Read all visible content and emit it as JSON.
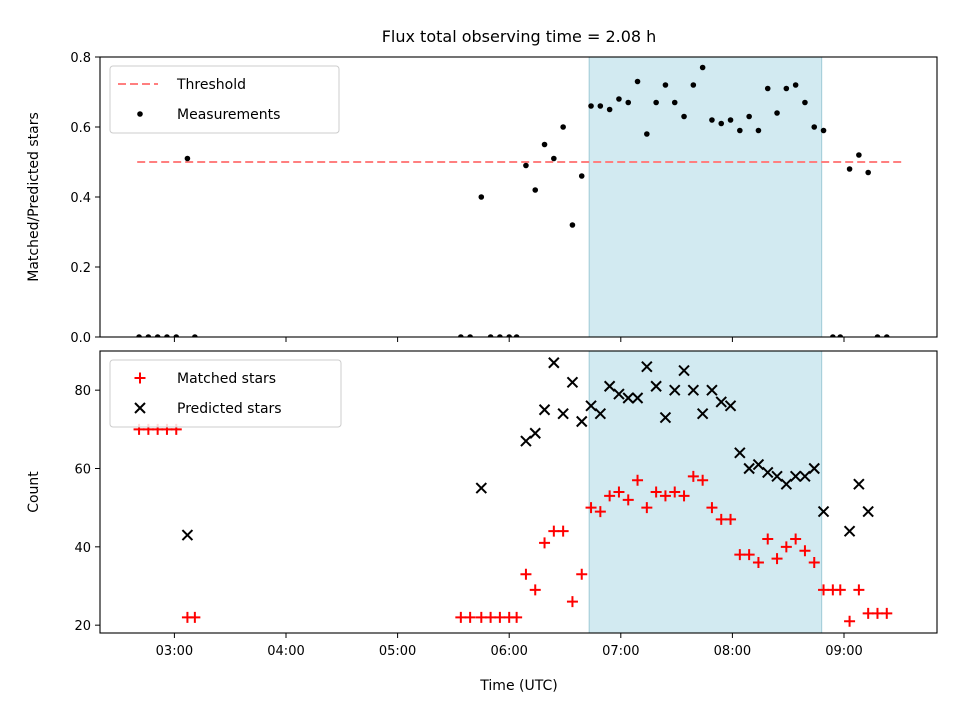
{
  "title": "Flux total observing time = 2.08 h",
  "xlabel": "Time (UTC)",
  "x_ticks": [
    "03:00",
    "04:00",
    "05:00",
    "06:00",
    "07:00",
    "08:00",
    "09:00"
  ],
  "shaded_interval": {
    "start": "06:43",
    "end": "08:48",
    "color": "#add8e6"
  },
  "chart_data": [
    {
      "type": "scatter",
      "panel": "top",
      "ylabel": "Matched/Predicted stars",
      "xlim": [
        "02:20",
        "09:50"
      ],
      "ylim": [
        0,
        0.8
      ],
      "y_ticks": [
        "0.0",
        "0.2",
        "0.4",
        "0.6",
        "0.8"
      ],
      "legend": [
        "Threshold",
        "Measurements"
      ],
      "legend_position": "upper-left",
      "threshold": {
        "name": "Threshold",
        "value": 0.5,
        "x_start": "02:40",
        "x_end": "09:32",
        "color": "#ff7f7f"
      },
      "series": [
        {
          "name": "Measurements",
          "marker": "dot",
          "color": "#000000",
          "points": [
            [
              "02:41",
              0
            ],
            [
              "02:46",
              0
            ],
            [
              "02:51",
              0
            ],
            [
              "02:56",
              0
            ],
            [
              "03:01",
              0
            ],
            [
              "03:07",
              0.51
            ],
            [
              "03:11",
              0
            ],
            [
              "05:34",
              0
            ],
            [
              "05:39",
              0
            ],
            [
              "05:45",
              0.4
            ],
            [
              "05:50",
              0
            ],
            [
              "05:55",
              0
            ],
            [
              "06:00",
              0
            ],
            [
              "06:04",
              0
            ],
            [
              "06:09",
              0.49
            ],
            [
              "06:14",
              0.42
            ],
            [
              "06:19",
              0.55
            ],
            [
              "06:24",
              0.51
            ],
            [
              "06:29",
              0.6
            ],
            [
              "06:34",
              0.32
            ],
            [
              "06:39",
              0.46
            ],
            [
              "06:44",
              0.66
            ],
            [
              "06:49",
              0.66
            ],
            [
              "06:54",
              0.65
            ],
            [
              "06:59",
              0.68
            ],
            [
              "07:04",
              0.67
            ],
            [
              "07:09",
              0.73
            ],
            [
              "07:14",
              0.58
            ],
            [
              "07:19",
              0.67
            ],
            [
              "07:24",
              0.72
            ],
            [
              "07:29",
              0.67
            ],
            [
              "07:34",
              0.63
            ],
            [
              "07:39",
              0.72
            ],
            [
              "07:44",
              0.77
            ],
            [
              "07:49",
              0.62
            ],
            [
              "07:54",
              0.61
            ],
            [
              "07:59",
              0.62
            ],
            [
              "08:04",
              0.59
            ],
            [
              "08:09",
              0.63
            ],
            [
              "08:14",
              0.59
            ],
            [
              "08:19",
              0.71
            ],
            [
              "08:24",
              0.64
            ],
            [
              "08:29",
              0.71
            ],
            [
              "08:34",
              0.72
            ],
            [
              "08:39",
              0.67
            ],
            [
              "08:44",
              0.6
            ],
            [
              "08:49",
              0.59
            ],
            [
              "08:54",
              0
            ],
            [
              "08:58",
              0
            ],
            [
              "09:03",
              0.48
            ],
            [
              "09:08",
              0.52
            ],
            [
              "09:13",
              0.47
            ],
            [
              "09:18",
              0
            ],
            [
              "09:23",
              0
            ]
          ]
        }
      ]
    },
    {
      "type": "scatter",
      "panel": "bottom",
      "ylabel": "Count",
      "xlim": [
        "02:20",
        "09:50"
      ],
      "ylim": [
        18,
        90
      ],
      "y_ticks": [
        "20",
        "40",
        "60",
        "80"
      ],
      "legend": [
        "Matched stars",
        "Predicted stars"
      ],
      "legend_position": "upper-left",
      "series": [
        {
          "name": "Matched stars",
          "marker": "plus",
          "color": "#ff0000",
          "points": [
            [
              "02:41",
              70
            ],
            [
              "02:46",
              70
            ],
            [
              "02:51",
              70
            ],
            [
              "02:56",
              70
            ],
            [
              "03:01",
              70
            ],
            [
              "03:07",
              22
            ],
            [
              "03:11",
              22
            ],
            [
              "05:34",
              22
            ],
            [
              "05:39",
              22
            ],
            [
              "05:45",
              22
            ],
            [
              "05:50",
              22
            ],
            [
              "05:55",
              22
            ],
            [
              "06:00",
              22
            ],
            [
              "06:04",
              22
            ],
            [
              "06:09",
              33
            ],
            [
              "06:14",
              29
            ],
            [
              "06:19",
              41
            ],
            [
              "06:24",
              44
            ],
            [
              "06:29",
              44
            ],
            [
              "06:34",
              26
            ],
            [
              "06:39",
              33
            ],
            [
              "06:44",
              50
            ],
            [
              "06:49",
              49
            ],
            [
              "06:54",
              53
            ],
            [
              "06:59",
              54
            ],
            [
              "07:04",
              52
            ],
            [
              "07:09",
              57
            ],
            [
              "07:14",
              50
            ],
            [
              "07:19",
              54
            ],
            [
              "07:24",
              53
            ],
            [
              "07:29",
              54
            ],
            [
              "07:34",
              53
            ],
            [
              "07:39",
              58
            ],
            [
              "07:44",
              57
            ],
            [
              "07:49",
              50
            ],
            [
              "07:54",
              47
            ],
            [
              "07:59",
              47
            ],
            [
              "08:04",
              38
            ],
            [
              "08:09",
              38
            ],
            [
              "08:14",
              36
            ],
            [
              "08:19",
              42
            ],
            [
              "08:24",
              37
            ],
            [
              "08:29",
              40
            ],
            [
              "08:34",
              42
            ],
            [
              "08:39",
              39
            ],
            [
              "08:44",
              36
            ],
            [
              "08:49",
              29
            ],
            [
              "08:54",
              29
            ],
            [
              "08:58",
              29
            ],
            [
              "09:03",
              21
            ],
            [
              "09:08",
              29
            ],
            [
              "09:13",
              23
            ],
            [
              "09:18",
              23
            ],
            [
              "09:23",
              23
            ]
          ]
        },
        {
          "name": "Predicted stars",
          "marker": "x",
          "color": "#000000",
          "points": [
            [
              "03:07",
              43
            ],
            [
              "05:45",
              55
            ],
            [
              "06:09",
              67
            ],
            [
              "06:14",
              69
            ],
            [
              "06:19",
              75
            ],
            [
              "06:24",
              87
            ],
            [
              "06:29",
              74
            ],
            [
              "06:34",
              82
            ],
            [
              "06:39",
              72
            ],
            [
              "06:44",
              76
            ],
            [
              "06:49",
              74
            ],
            [
              "06:54",
              81
            ],
            [
              "06:59",
              79
            ],
            [
              "07:04",
              78
            ],
            [
              "07:09",
              78
            ],
            [
              "07:14",
              86
            ],
            [
              "07:19",
              81
            ],
            [
              "07:24",
              73
            ],
            [
              "07:29",
              80
            ],
            [
              "07:34",
              85
            ],
            [
              "07:39",
              80
            ],
            [
              "07:44",
              74
            ],
            [
              "07:49",
              80
            ],
            [
              "07:54",
              77
            ],
            [
              "07:59",
              76
            ],
            [
              "08:04",
              64
            ],
            [
              "08:09",
              60
            ],
            [
              "08:14",
              61
            ],
            [
              "08:19",
              59
            ],
            [
              "08:24",
              58
            ],
            [
              "08:29",
              56
            ],
            [
              "08:34",
              58
            ],
            [
              "08:39",
              58
            ],
            [
              "08:44",
              60
            ],
            [
              "08:49",
              49
            ],
            [
              "09:03",
              44
            ],
            [
              "09:08",
              56
            ],
            [
              "09:13",
              49
            ]
          ]
        }
      ]
    }
  ]
}
